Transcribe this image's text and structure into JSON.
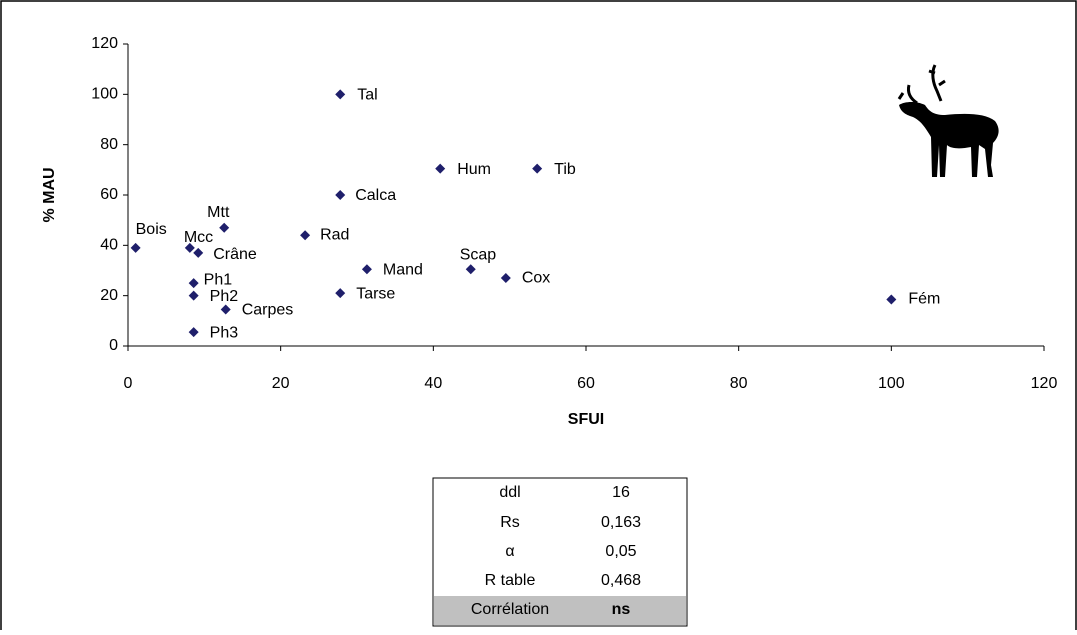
{
  "chart_data": {
    "type": "scatter",
    "x_label": "SFUI",
    "y_label": "% MAU",
    "x": [
      1,
      8.1,
      9.2,
      12.6,
      8.6,
      8.6,
      8.6,
      12.8,
      27.8,
      27.8,
      27.8,
      23.2,
      31.3,
      40.9,
      53.6,
      44.9,
      49.5,
      100
    ],
    "values": [
      39,
      39,
      37,
      47,
      25,
      20,
      5.5,
      14.5,
      100,
      60,
      21,
      44,
      30.5,
      70.5,
      70.5,
      30.5,
      27,
      18.5
    ],
    "point_labels": [
      "Bois",
      "Mcc",
      "Crâne",
      "Mtt",
      "Ph1",
      "Ph2",
      "Ph3",
      "Carpes",
      "Tal",
      "Calca",
      "Tarse",
      "Rad",
      "Mand",
      "Hum",
      "Tib",
      "Scap",
      "Cox",
      "Fém"
    ],
    "color": "#1f1f6b",
    "xlim": [
      0,
      120
    ],
    "xticks": [
      0,
      20,
      40,
      60,
      80,
      100,
      120
    ],
    "ylim": [
      0,
      120
    ],
    "yticks": [
      0,
      20,
      40,
      60,
      80,
      100,
      120
    ]
  },
  "table": {
    "rows": [
      [
        "ddl",
        "16"
      ],
      [
        "Rs",
        "0,163"
      ],
      [
        "α",
        "0,05"
      ],
      [
        "R table",
        "0,468"
      ],
      [
        "Corrélation",
        "ns"
      ]
    ]
  }
}
